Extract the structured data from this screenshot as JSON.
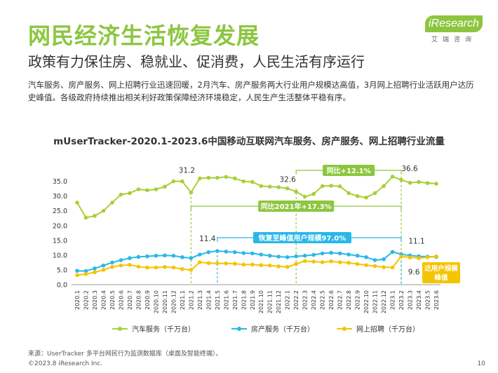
{
  "header": {
    "title": "网民经济生活恢复发展",
    "subtitle": "政策有力保住房、稳就业、促消费，人民生活有序运行",
    "intro": "汽车服务、房产服务、网上招聘行业迅速回暖，2月汽车、房产服务两大行业用户规模达高值，3月网上招聘行业活跃用户达历史峰值。各级政府持续推出相关利好政策保障经济环境稳定，人民生产生活整体平稳有序。"
  },
  "logo": {
    "brand": "iResearch",
    "cn": "艾瑞咨询"
  },
  "footer": {
    "source": "来源：UserTracker 多平台网民行为监测数据库（桌面及智能终端）。",
    "copyright": "©2023.8 iResearch Inc.",
    "page": "10"
  },
  "colors": {
    "car": "#a8cf38",
    "house": "#29b8e8",
    "job": "#f5c400",
    "annotation_green": "#8cc63f",
    "annotation_blue": "#29b8e8",
    "annotation_yellow": "#f5c400",
    "axis": "#999999",
    "text": "#333333"
  },
  "chart_data": {
    "type": "line",
    "title": "mUserTracker-2020.1-2023.6中国移动互联网汽车服务、房产服务、网上招聘行业流量",
    "xlabel": "",
    "ylabel": "",
    "ylim": [
      0,
      38
    ],
    "yticks": [
      "0.0",
      "5.0",
      "10.0",
      "15.0",
      "20.0",
      "25.0",
      "30.0",
      "35.0"
    ],
    "grid": false,
    "legend_position": "bottom",
    "categories": [
      "2020.1",
      "2020.2",
      "2020.3",
      "2020.4",
      "2020.5",
      "2020.6",
      "2020.7",
      "2020.8",
      "2020.9",
      "2020.10",
      "2020.11",
      "2020.12",
      "2021.1",
      "2021.2",
      "2021.3",
      "2021.4",
      "2021.5",
      "2021.6",
      "2021.7",
      "2021.8",
      "2021.9",
      "2021.10",
      "2021.11",
      "2021.12",
      "2022.1",
      "2022.2",
      "2022.3",
      "2022.4",
      "2022.5",
      "2022.6",
      "2022.7",
      "2022.8",
      "2022.9",
      "2022.10",
      "2022.11",
      "2022.12",
      "2023.1",
      "2023.2",
      "2023.3",
      "2023.4",
      "2023.5",
      "2023.6"
    ],
    "series": [
      {
        "name": "汽车服务（千万台）",
        "values": [
          27.8,
          22.7,
          23.3,
          25.0,
          27.8,
          30.5,
          31.0,
          32.3,
          32.0,
          32.3,
          33.2,
          35.0,
          35.0,
          31.2,
          36.0,
          36.2,
          36.2,
          36.5,
          36.0,
          35.0,
          34.8,
          33.4,
          33.2,
          33.0,
          32.6,
          31.5,
          29.8,
          30.7,
          33.4,
          33.5,
          33.3,
          31.0,
          30.0,
          29.5,
          31.0,
          33.4,
          36.6,
          35.5,
          34.5,
          34.8,
          34.4,
          34.2
        ]
      },
      {
        "name": "房产服务（千万台）",
        "values": [
          4.7,
          4.6,
          5.5,
          6.5,
          7.5,
          8.3,
          9.0,
          9.4,
          9.6,
          9.8,
          9.9,
          9.8,
          9.3,
          9.0,
          10.2,
          11.0,
          11.4,
          11.2,
          11.0,
          10.7,
          10.6,
          10.2,
          9.8,
          9.5,
          9.3,
          9.6,
          9.8,
          10.1,
          10.6,
          10.8,
          10.6,
          10.2,
          9.8,
          9.3,
          8.3,
          8.6,
          11.1,
          10.3,
          9.9,
          9.6,
          9.5,
          9.4
        ]
      },
      {
        "name": "网上招聘（千万台）",
        "values": [
          3.2,
          3.6,
          4.2,
          5.0,
          6.0,
          6.5,
          6.7,
          6.1,
          5.8,
          5.8,
          6.0,
          5.8,
          5.3,
          5.0,
          7.6,
          7.3,
          7.2,
          7.2,
          7.1,
          6.8,
          6.8,
          6.6,
          6.5,
          6.2,
          6.0,
          7.0,
          8.0,
          7.8,
          7.6,
          7.9,
          7.6,
          7.4,
          7.0,
          6.6,
          6.3,
          5.9,
          5.8,
          9.6,
          9.2,
          9.0,
          9.3,
          9.6
        ]
      }
    ],
    "annotations": {
      "car_peak_2021": "31.2",
      "car_peak_2022": "32.6",
      "car_peak_2023": "36.6",
      "house_peak_2021": "11.4",
      "house_peak_2023": "11.1",
      "job_peak_2023": "9.6",
      "yoy_label": "同比+12.1%",
      "vs2021_label": "同比2021年+17.3%",
      "recovery_label": "恢复至峰值用户规模97.0%",
      "job_peak_label_1": "达用户规模",
      "job_peak_label_2": "峰值"
    }
  }
}
